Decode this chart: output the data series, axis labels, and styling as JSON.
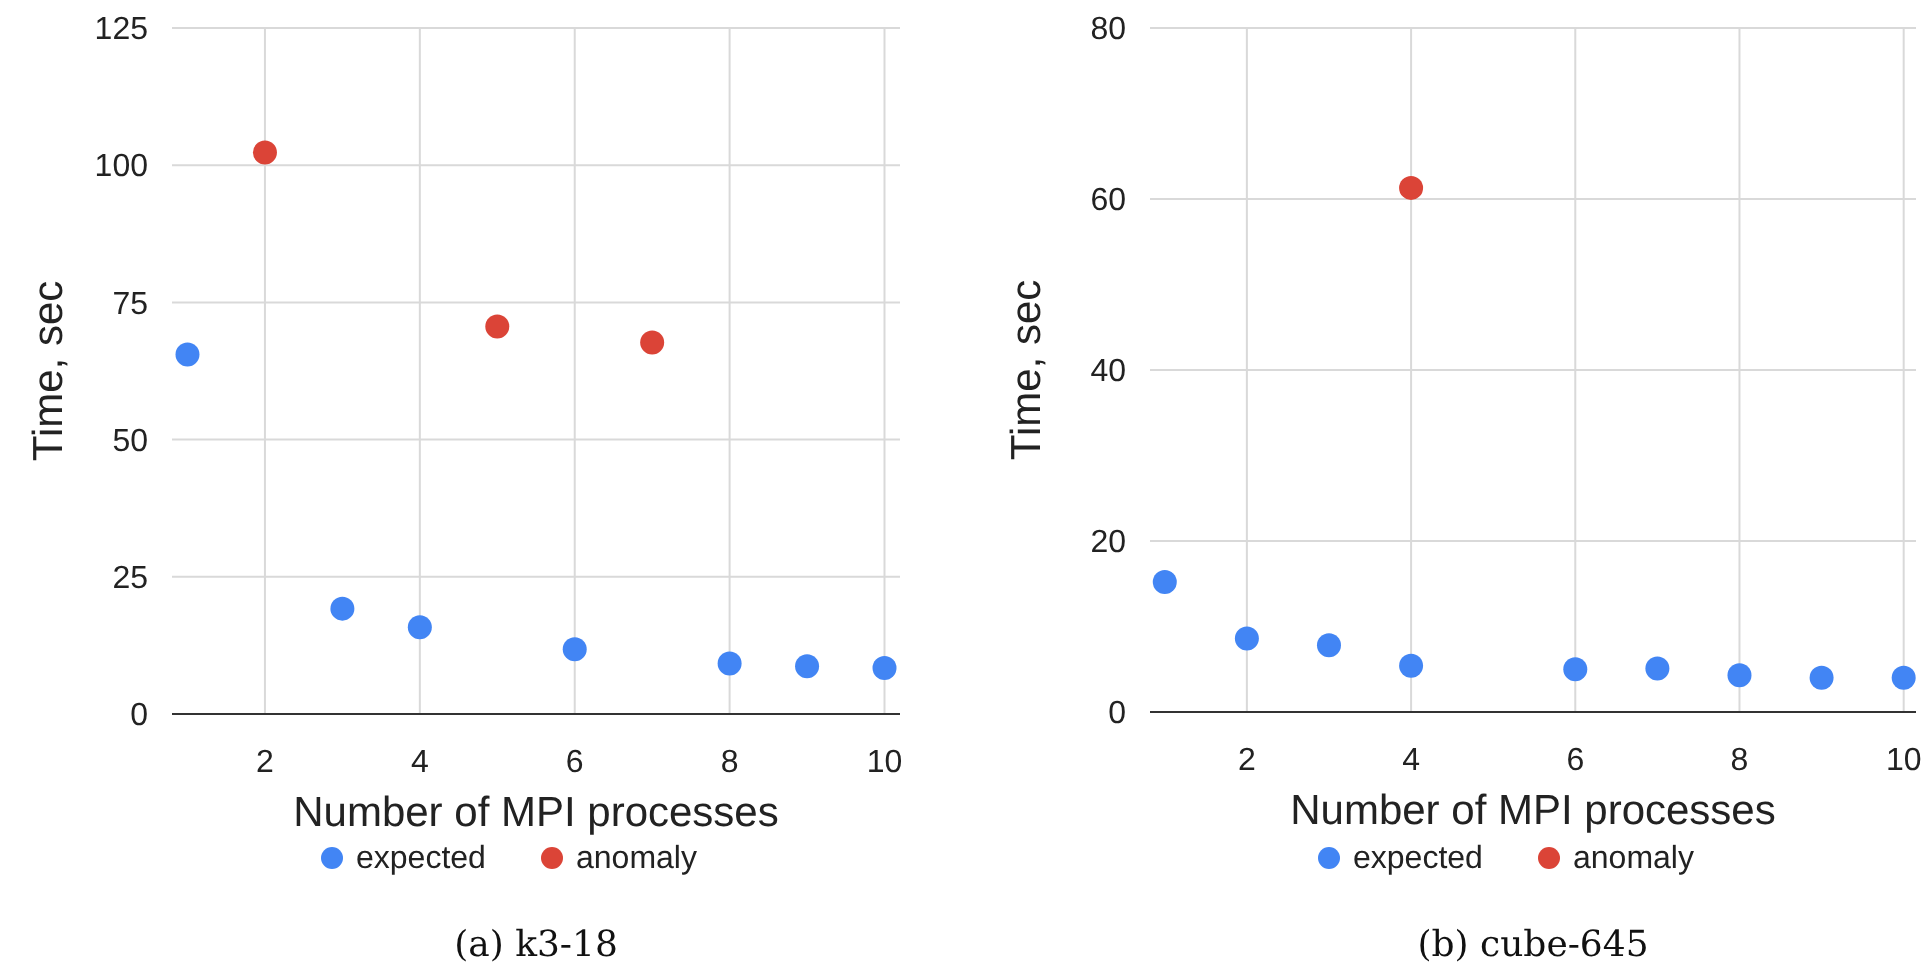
{
  "chart_data": [
    {
      "type": "scatter",
      "title": "(a) k3-18",
      "xlabel": "Number of MPI processes",
      "ylabel": "Time, sec",
      "xlim": [
        0.8,
        10.2
      ],
      "xticks": [
        2,
        4,
        6,
        8,
        10
      ],
      "ylim": [
        0,
        125
      ],
      "yticks": [
        0,
        25,
        50,
        75,
        100,
        125
      ],
      "grid": true,
      "legend": "bottom",
      "marker": "circle",
      "series": [
        {
          "name": "expected",
          "color": "#4285f4",
          "x": [
            1,
            3,
            4,
            6,
            8,
            9,
            10
          ],
          "values": [
            65.5,
            19.2,
            15.8,
            11.8,
            9.2,
            8.7,
            8.4
          ]
        },
        {
          "name": "anomaly",
          "color": "#db4437",
          "x": [
            2,
            5,
            7
          ],
          "values": [
            102.3,
            70.6,
            67.7
          ]
        }
      ]
    },
    {
      "type": "scatter",
      "title": "(b) cube-645",
      "xlabel": "Number of MPI processes",
      "ylabel": "Time, sec",
      "xlim": [
        0.82,
        10.15
      ],
      "xticks": [
        2,
        4,
        6,
        8,
        10
      ],
      "ylim": [
        0,
        80
      ],
      "yticks": [
        0,
        20,
        40,
        60,
        80
      ],
      "grid": true,
      "legend": "bottom",
      "marker": "circle",
      "series": [
        {
          "name": "expected",
          "color": "#4285f4",
          "x": [
            1,
            2,
            3,
            4,
            6,
            7,
            8,
            9,
            10
          ],
          "values": [
            15.2,
            8.6,
            7.8,
            5.4,
            5.0,
            5.1,
            4.3,
            4.0,
            4.0
          ]
        },
        {
          "name": "anomaly",
          "color": "#db4437",
          "x": [
            4
          ],
          "values": [
            61.3
          ]
        }
      ]
    }
  ]
}
